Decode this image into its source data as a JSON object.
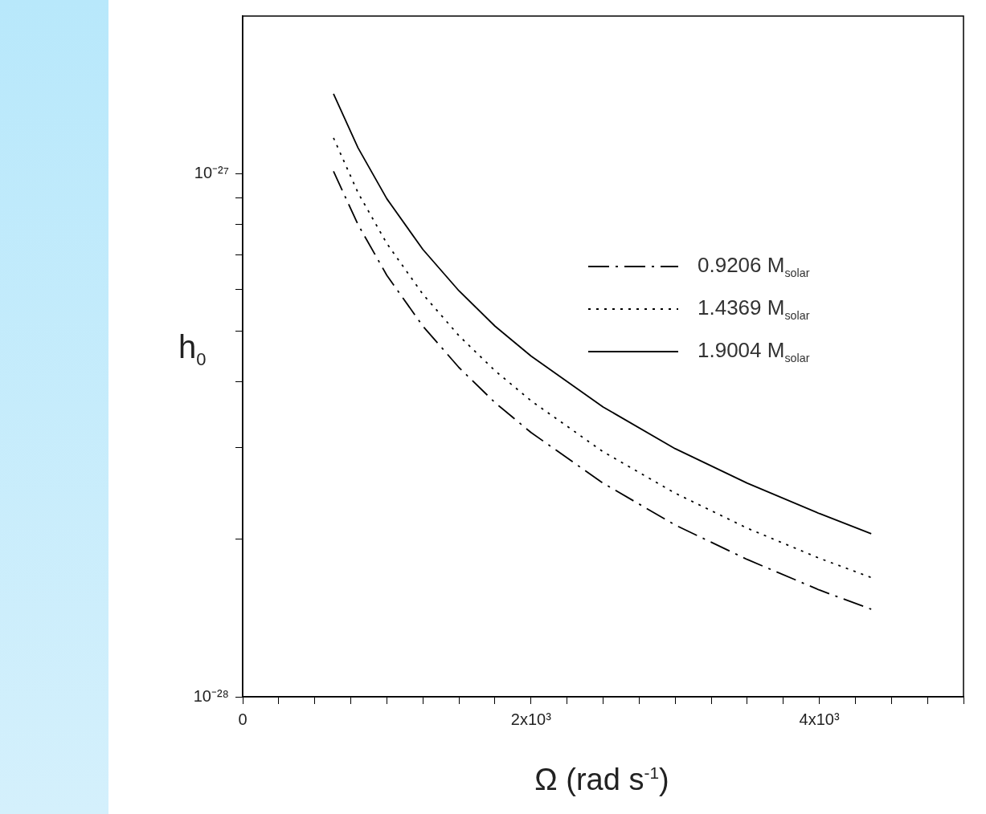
{
  "chart_data": {
    "type": "line",
    "xlabel": "Ω (rad s$^{-1}$)",
    "ylabel": "h$_{0}$",
    "log": "y",
    "marker": "none",
    "legend": "right",
    "x": [
      630,
      800,
      1000,
      1250,
      1500,
      1750,
      2000,
      2500,
      3000,
      3500,
      4000,
      4360
    ],
    "xlim": [
      0,
      5000
    ],
    "xticks": [
      {
        "value": 0,
        "label": "0"
      },
      {
        "value": 250,
        "label": null
      },
      {
        "value": 500,
        "label": null
      },
      {
        "value": 750,
        "label": null
      },
      {
        "value": 1000,
        "label": null
      },
      {
        "value": 1250,
        "label": null
      },
      {
        "value": 1500,
        "label": null
      },
      {
        "value": 1750,
        "label": null
      },
      {
        "value": 2000,
        "label": "2x10³"
      },
      {
        "value": 2250,
        "label": null
      },
      {
        "value": 2500,
        "label": null
      },
      {
        "value": 2750,
        "label": null
      },
      {
        "value": 3000,
        "label": null
      },
      {
        "value": 3250,
        "label": null
      },
      {
        "value": 3500,
        "label": null
      },
      {
        "value": 3750,
        "label": null
      },
      {
        "value": 4000,
        "label": "4x10³"
      },
      {
        "value": 4250,
        "label": null
      },
      {
        "value": 4500,
        "label": null
      },
      {
        "value": 4750,
        "label": null
      },
      {
        "value": 5000,
        "label": null
      }
    ],
    "ylim": [
      1e-28,
      2e-27
    ],
    "yticks": [
      {
        "value": 1e-28,
        "label": "10⁻²⁸"
      },
      {
        "value": 2e-28,
        "label": null
      },
      {
        "value": 3e-28,
        "label": null
      },
      {
        "value": 4e-28,
        "label": null
      },
      {
        "value": 5e-28,
        "label": null
      },
      {
        "value": 6e-28,
        "label": null
      },
      {
        "value": 7e-28,
        "label": null
      },
      {
        "value": 8e-28,
        "label": null
      },
      {
        "value": 9e-28,
        "label": null
      },
      {
        "value": 1e-27,
        "label": "10⁻²⁷"
      }
    ],
    "series": [
      {
        "name": "0.9206 M$_{solar}$",
        "color": "#000000",
        "line_style": "dashed",
        "values": [
          1.01e-27,
          7.99e-28,
          6.39e-28,
          5.11e-28,
          4.26e-28,
          3.65e-28,
          3.2e-28,
          2.56e-28,
          2.13e-28,
          1.83e-28,
          1.6e-28,
          1.47e-28
        ]
      },
      {
        "name": "1.4369 M$_{solar}$",
        "color": "#000000",
        "line_style": "dotted",
        "values": [
          1.17e-27,
          9.19e-28,
          7.35e-28,
          5.88e-28,
          4.9e-28,
          4.2e-28,
          3.68e-28,
          2.94e-28,
          2.45e-28,
          2.1e-28,
          1.84e-28,
          1.69e-28
        ]
      },
      {
        "name": "1.9004 M$_{solar}$",
        "color": "#000000",
        "line_style": "solid",
        "values": [
          1.42e-27,
          1.12e-27,
          8.95e-28,
          7.16e-28,
          5.97e-28,
          5.11e-28,
          4.48e-28,
          3.58e-28,
          2.98e-28,
          2.56e-28,
          2.24e-28,
          2.05e-28
        ]
      }
    ]
  }
}
